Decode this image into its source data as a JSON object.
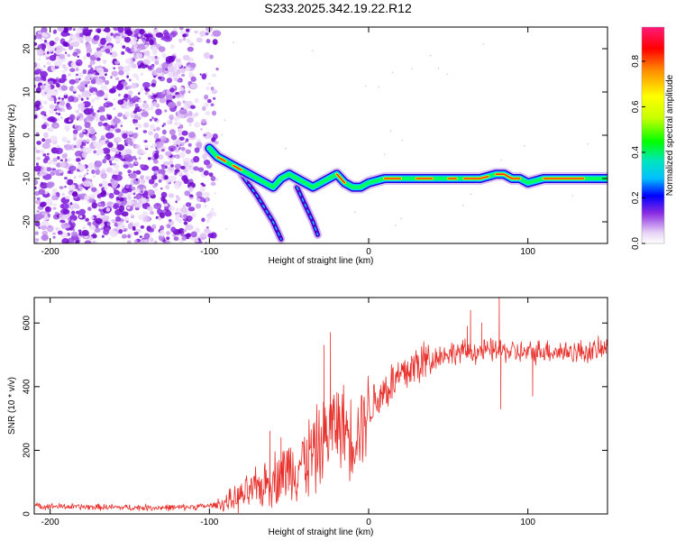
{
  "title": "S233.2025.342.19.22.R12",
  "chart_data": [
    {
      "type": "heatmap",
      "name": "spectrogram",
      "xlabel": "Height of straight line (km)",
      "ylabel": "Frequency (Hz)",
      "xlim": [
        -210,
        150
      ],
      "ylim": [
        -25,
        25
      ],
      "xticks": [
        -200,
        -100,
        0,
        100
      ],
      "yticks": [
        -20,
        -10,
        0,
        10,
        20
      ],
      "colorbar": {
        "label": "Normalized spectral amplitude",
        "range": [
          0.0,
          0.95
        ],
        "ticks": [
          0.0,
          0.2,
          0.4,
          0.6,
          0.8
        ],
        "colormap": [
          "#ffffff",
          "#e6d2f5",
          "#8a2be2",
          "#0000ff",
          "#00bfff",
          "#00e5c0",
          "#00ff00",
          "#c8ff00",
          "#ffff00",
          "#ff8c00",
          "#ff0000",
          "#ff1a7a"
        ]
      },
      "noise_region": {
        "x_range": [
          -210,
          -95
        ],
        "f_range": [
          -25,
          25
        ],
        "color": "#8a2be2"
      },
      "ridge": {
        "name": "dominant frequency line",
        "x": [
          -100,
          -95,
          -90,
          -85,
          -80,
          -75,
          -70,
          -65,
          -60,
          -55,
          -50,
          -45,
          -40,
          -35,
          -30,
          -25,
          -20,
          -15,
          -10,
          -5,
          0,
          10,
          20,
          30,
          40,
          50,
          60,
          70,
          80,
          85,
          90,
          95,
          100,
          110,
          120,
          130,
          140,
          150
        ],
        "f": [
          -3,
          -5,
          -6,
          -7,
          -8,
          -9,
          -10,
          -11,
          -12,
          -10,
          -9,
          -10,
          -11,
          -12,
          -11,
          -10,
          -9,
          -11,
          -12,
          -12,
          -11,
          -10,
          -10,
          -10,
          -10,
          -10,
          -10,
          -10,
          -9,
          -9,
          -10,
          -10,
          -11,
          -10,
          -10,
          -10,
          -10,
          -10
        ]
      },
      "branches": [
        {
          "x": [
            -80,
            -70,
            -60,
            -55
          ],
          "f": [
            -9,
            -14,
            -20,
            -24
          ]
        },
        {
          "x": [
            -45,
            -40,
            -35,
            -32
          ],
          "f": [
            -12,
            -16,
            -20,
            -23
          ]
        }
      ]
    },
    {
      "type": "line",
      "name": "snr",
      "xlabel": "Height of straight line (km)",
      "ylabel": "SNR (10 * v/v)",
      "xlim": [
        -210,
        150
      ],
      "ylim": [
        0,
        680
      ],
      "xticks": [
        -200,
        -100,
        0,
        100
      ],
      "yticks": [
        0,
        200,
        400,
        600
      ],
      "series": [
        {
          "name": "SNR",
          "color": "#e8302b",
          "x": [
            -210,
            -180,
            -150,
            -120,
            -100,
            -90,
            -80,
            -70,
            -60,
            -50,
            -40,
            -30,
            -25,
            -20,
            -15,
            -10,
            -5,
            0,
            10,
            20,
            30,
            40,
            50,
            60,
            70,
            80,
            90,
            100,
            110,
            120,
            130,
            140,
            150
          ],
          "y": [
            25,
            22,
            20,
            20,
            25,
            35,
            55,
            80,
            110,
            140,
            170,
            210,
            260,
            290,
            270,
            240,
            280,
            330,
            390,
            430,
            470,
            490,
            505,
            510,
            510,
            515,
            510,
            505,
            515,
            510,
            510,
            510,
            520
          ],
          "spikes": [
            {
              "x": -62,
              "y": 260
            },
            {
              "x": -55,
              "y": 240
            },
            {
              "x": -24,
              "y": 570
            },
            {
              "x": -28,
              "y": 530
            },
            {
              "x": 64,
              "y": 640
            },
            {
              "x": 82,
              "y": 680
            },
            {
              "x": 83,
              "y": 330
            },
            {
              "x": 103,
              "y": 370
            },
            {
              "x": 71,
              "y": 600
            },
            {
              "x": 62,
              "y": 590
            }
          ]
        }
      ]
    }
  ]
}
